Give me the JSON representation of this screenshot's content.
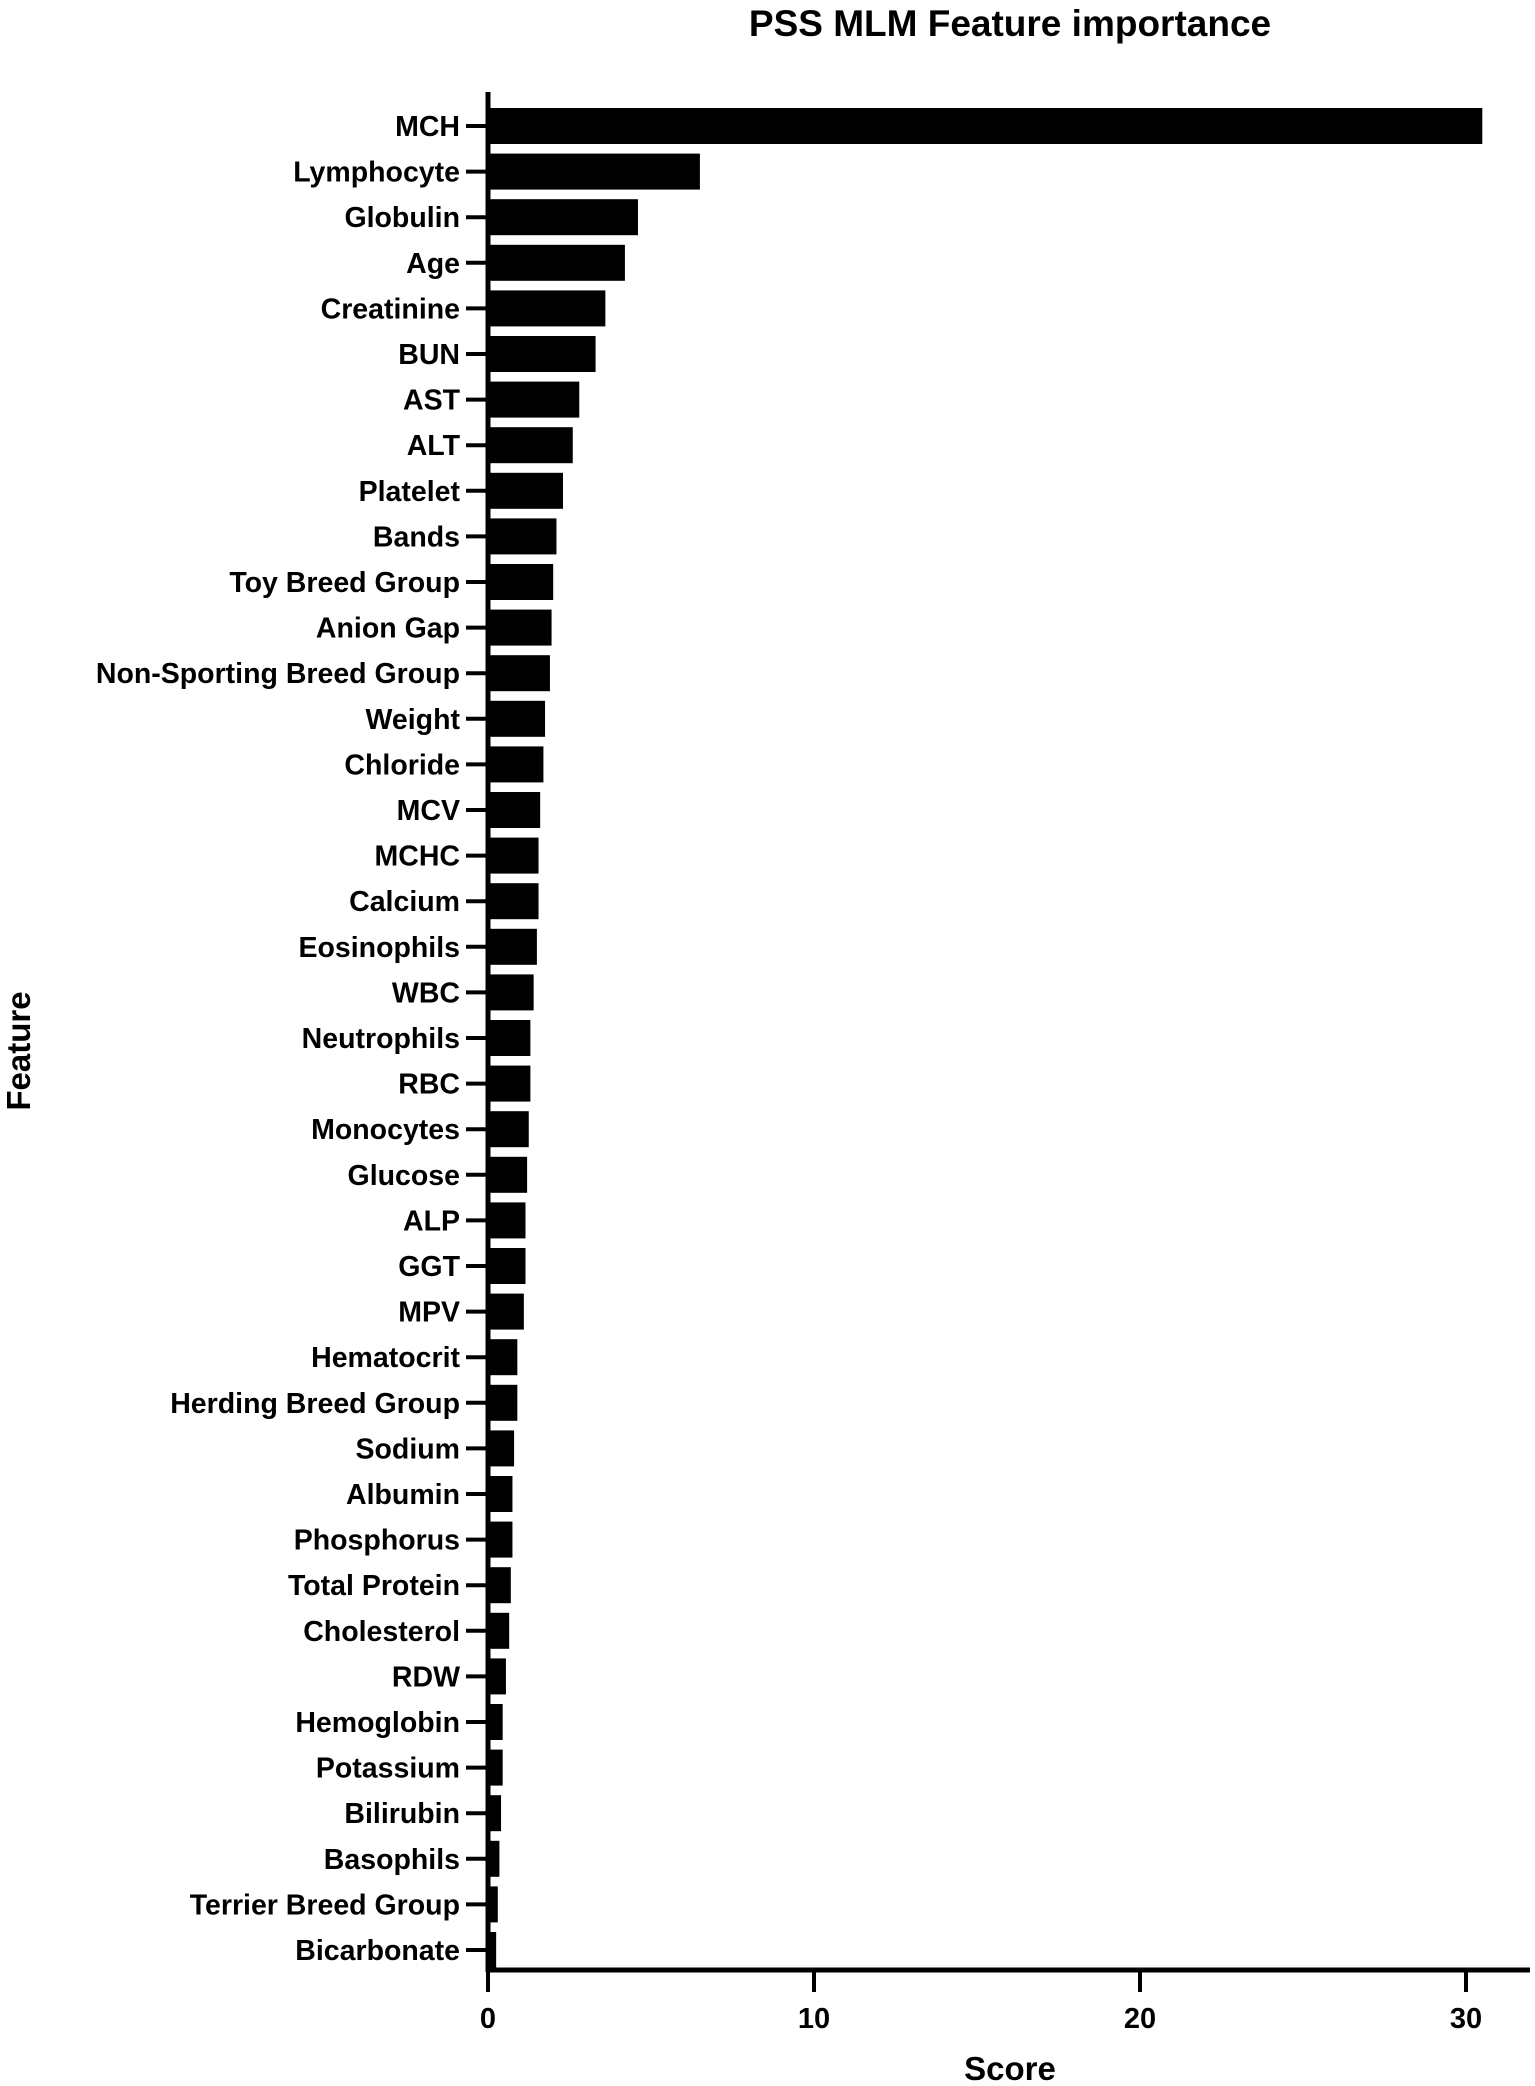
{
  "chart_data": {
    "type": "bar",
    "orientation": "horizontal",
    "title": "PSS MLM Feature importance",
    "xlabel": "Score",
    "ylabel": "Feature",
    "xlim": [
      0,
      32
    ],
    "xticks": [
      0,
      10,
      20,
      30
    ],
    "grid": false,
    "bar_color": "#000000",
    "categories": [
      "MCH",
      "Lymphocyte",
      "Globulin",
      "Age",
      "Creatinine",
      "BUN",
      "AST",
      "ALT",
      "Platelet",
      "Bands",
      "Toy Breed Group",
      "Anion Gap",
      "Non-Sporting Breed Group",
      "Weight",
      "Chloride",
      "MCV",
      "MCHC",
      "Calcium",
      "Eosinophils",
      "WBC",
      "Neutrophils",
      "RBC",
      "Monocytes",
      "Glucose",
      "ALP",
      "GGT",
      "MPV",
      "Hematocrit",
      "Herding Breed Group",
      "Sodium",
      "Albumin",
      "Phosphorus",
      "Total Protein",
      "Cholesterol",
      "RDW",
      "Hemoglobin",
      "Potassium",
      "Bilirubin",
      "Basophils",
      "Terrier Breed Group",
      "Bicarbonate"
    ],
    "values": [
      30.5,
      6.5,
      4.6,
      4.2,
      3.6,
      3.3,
      2.8,
      2.6,
      2.3,
      2.1,
      2.0,
      1.95,
      1.9,
      1.75,
      1.7,
      1.6,
      1.55,
      1.55,
      1.5,
      1.4,
      1.3,
      1.3,
      1.25,
      1.2,
      1.15,
      1.15,
      1.1,
      0.9,
      0.9,
      0.8,
      0.75,
      0.75,
      0.7,
      0.65,
      0.55,
      0.45,
      0.45,
      0.4,
      0.35,
      0.3,
      0.25
    ]
  }
}
